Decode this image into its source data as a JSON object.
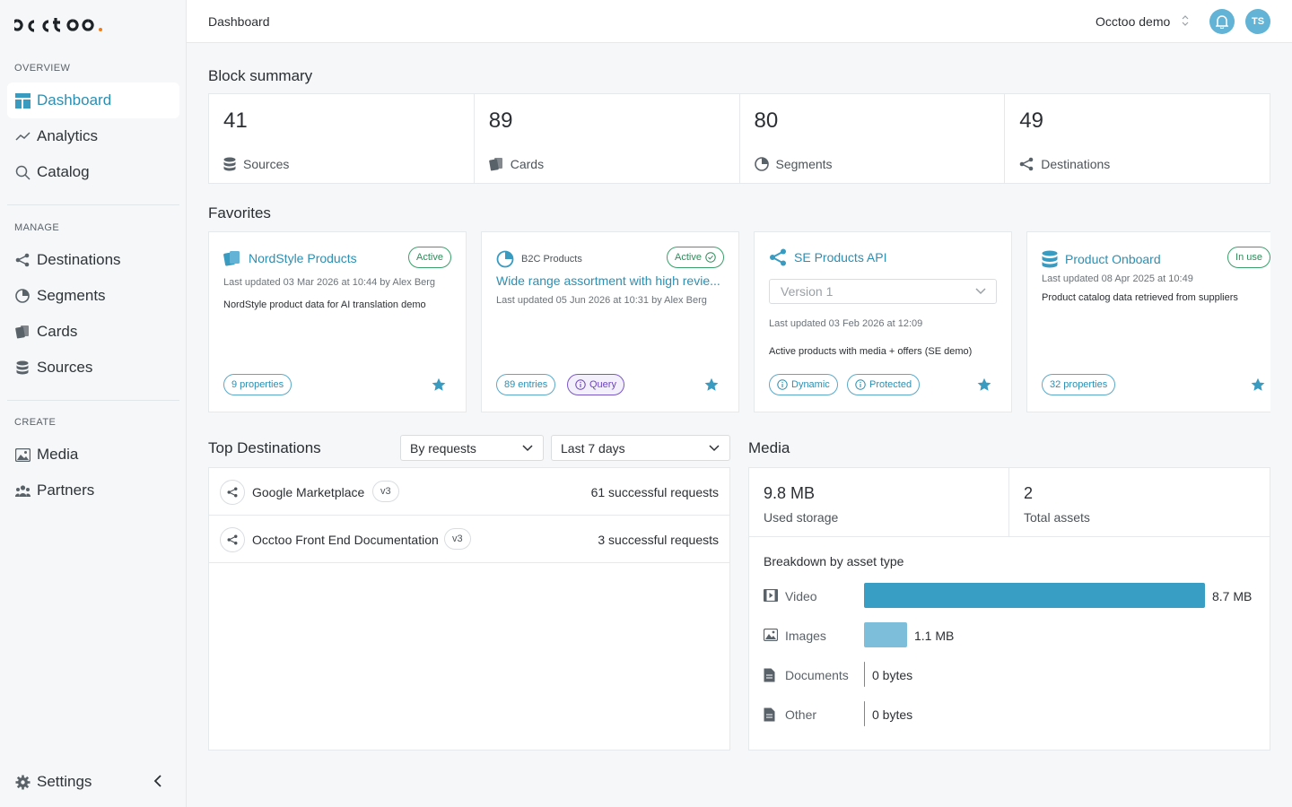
{
  "brand": {
    "logo_text": "occtoo",
    "accent": "#2c8fb2",
    "logo_dot": "#f07d1a"
  },
  "sidebar": {
    "sections": [
      {
        "label": "OVERVIEW"
      },
      {
        "label": "MANAGE"
      },
      {
        "label": "CREATE"
      }
    ],
    "items": [
      {
        "label": "Dashboard",
        "icon": "dashboard-icon",
        "active": true
      },
      {
        "label": "Analytics",
        "icon": "analytics-icon"
      },
      {
        "label": "Catalog",
        "icon": "search-icon"
      },
      {
        "label": "Destinations",
        "icon": "share-icon"
      },
      {
        "label": "Segments",
        "icon": "pie-icon"
      },
      {
        "label": "Cards",
        "icon": "cards-icon"
      },
      {
        "label": "Sources",
        "icon": "database-icon"
      },
      {
        "label": "Media",
        "icon": "image-icon"
      },
      {
        "label": "Partners",
        "icon": "people-icon"
      }
    ],
    "settings_label": "Settings"
  },
  "topbar": {
    "breadcrumb": "Dashboard",
    "org": "Occtoo demo",
    "avatar_initials": "TS"
  },
  "block_summary": {
    "title": "Block summary",
    "items": [
      {
        "value": "41",
        "label": "Sources"
      },
      {
        "value": "89",
        "label": "Cards"
      },
      {
        "value": "80",
        "label": "Segments"
      },
      {
        "value": "49",
        "label": "Destinations"
      }
    ]
  },
  "favorites": {
    "title": "Favorites",
    "cards": [
      {
        "title": "NordStyle Products",
        "badge": "Active",
        "updated": "Last updated 03 Mar 2026 at 10:44 by Alex Berg",
        "desc": "NordStyle product data for AI translation demo",
        "pills": [
          "9 properties"
        ]
      },
      {
        "type_label": "B2C Products",
        "title": "Wide range assortment with high revie...",
        "badge": "Active",
        "updated": "Last updated 05 Jun 2026 at 10:31 by Alex Berg",
        "pills": [
          "89 entries",
          "Query"
        ]
      },
      {
        "title": "SE Products API",
        "version_placeholder": "Version 1",
        "updated": "Last updated 03 Feb 2026 at 12:09",
        "desc": "Active products with media + offers (SE demo)",
        "pills": [
          "Dynamic",
          "Protected"
        ]
      },
      {
        "title": "Product Onboard",
        "badge": "In use",
        "updated": "Last updated 08 Apr 2025 at 10:49",
        "desc": "Product catalog data retrieved from suppliers",
        "pills": [
          "32 properties"
        ]
      }
    ]
  },
  "top_destinations": {
    "title": "Top Destinations",
    "sort_select": "By requests",
    "period_select": "Last 7 days",
    "rows": [
      {
        "name": "Google Marketplace",
        "version": "v3",
        "requests": "61 successful requests"
      },
      {
        "name": "Occtoo Front End Documentation",
        "version": "v3",
        "requests": "3 successful requests"
      }
    ]
  },
  "media": {
    "title": "Media",
    "used_storage": "9.8 MB",
    "used_storage_label": "Used storage",
    "total_assets": "2",
    "total_assets_label": "Total assets",
    "breakdown_title": "Breakdown by asset type",
    "assets": [
      {
        "name": "Video",
        "value": "8.7 MB",
        "share": 0.888,
        "color": "#399ec4",
        "icon": "video-icon"
      },
      {
        "name": "Images",
        "value": "1.1 MB",
        "share": 0.112,
        "color": "#7dbfdb",
        "icon": "image-icon"
      },
      {
        "name": "Documents",
        "value": "0 bytes",
        "share": 0,
        "color": "#399ec4",
        "icon": "document-icon"
      },
      {
        "name": "Other",
        "value": "0 bytes",
        "share": 0,
        "color": "#399ec4",
        "icon": "document-icon"
      }
    ]
  }
}
